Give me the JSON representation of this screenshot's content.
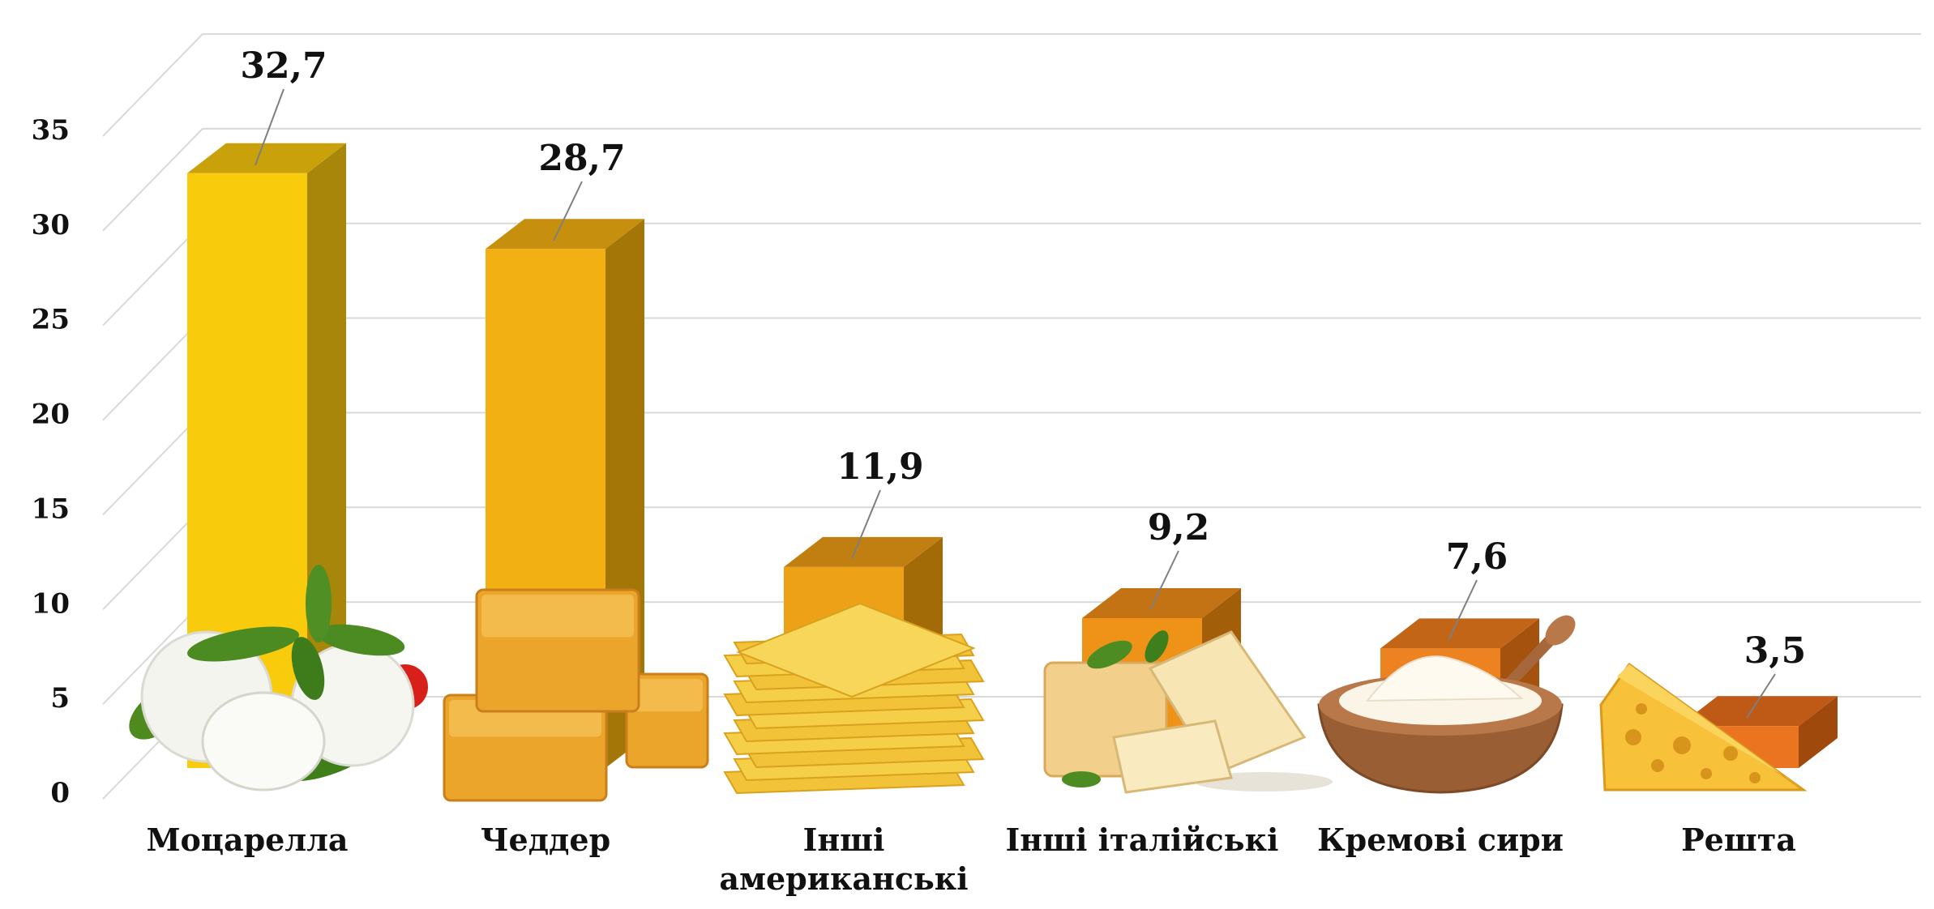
{
  "chart_data": {
    "type": "bar",
    "categories": [
      [
        "Моцарелла"
      ],
      [
        "Чеддер"
      ],
      [
        "Інші",
        "американські"
      ],
      [
        "Інші італійські"
      ],
      [
        "Кремові сири"
      ],
      [
        "Решта"
      ]
    ],
    "values": [
      32.7,
      28.7,
      11.9,
      9.2,
      7.6,
      3.5
    ],
    "value_labels": [
      "32,7",
      "28,7",
      "11,9",
      "9,2",
      "7,6",
      "3,5"
    ],
    "yticks": [
      0,
      5,
      10,
      15,
      20,
      25,
      30,
      35
    ],
    "ylim": [
      0,
      35
    ],
    "grid": true,
    "style": "3d-column",
    "colors": {
      "front": [
        "#F8CB0C",
        "#F2B012",
        "#EDA116",
        "#EE9318",
        "#EC8320",
        "#EA741F"
      ],
      "side": [
        "#A7860A",
        "#A47607",
        "#A36A08",
        "#A35E09",
        "#A4520D",
        "#A0490D"
      ],
      "top": [
        "#C9A10A",
        "#C68F0E",
        "#C27F11",
        "#C37313",
        "#C26517",
        "#BF5916"
      ]
    },
    "icons": [
      "mozzarella-basil-icon",
      "cheddar-cubes-icon",
      "american-slices-icon",
      "italian-wedges-icon",
      "cream-cheese-bowl-icon",
      "swiss-wedge-icon"
    ]
  }
}
